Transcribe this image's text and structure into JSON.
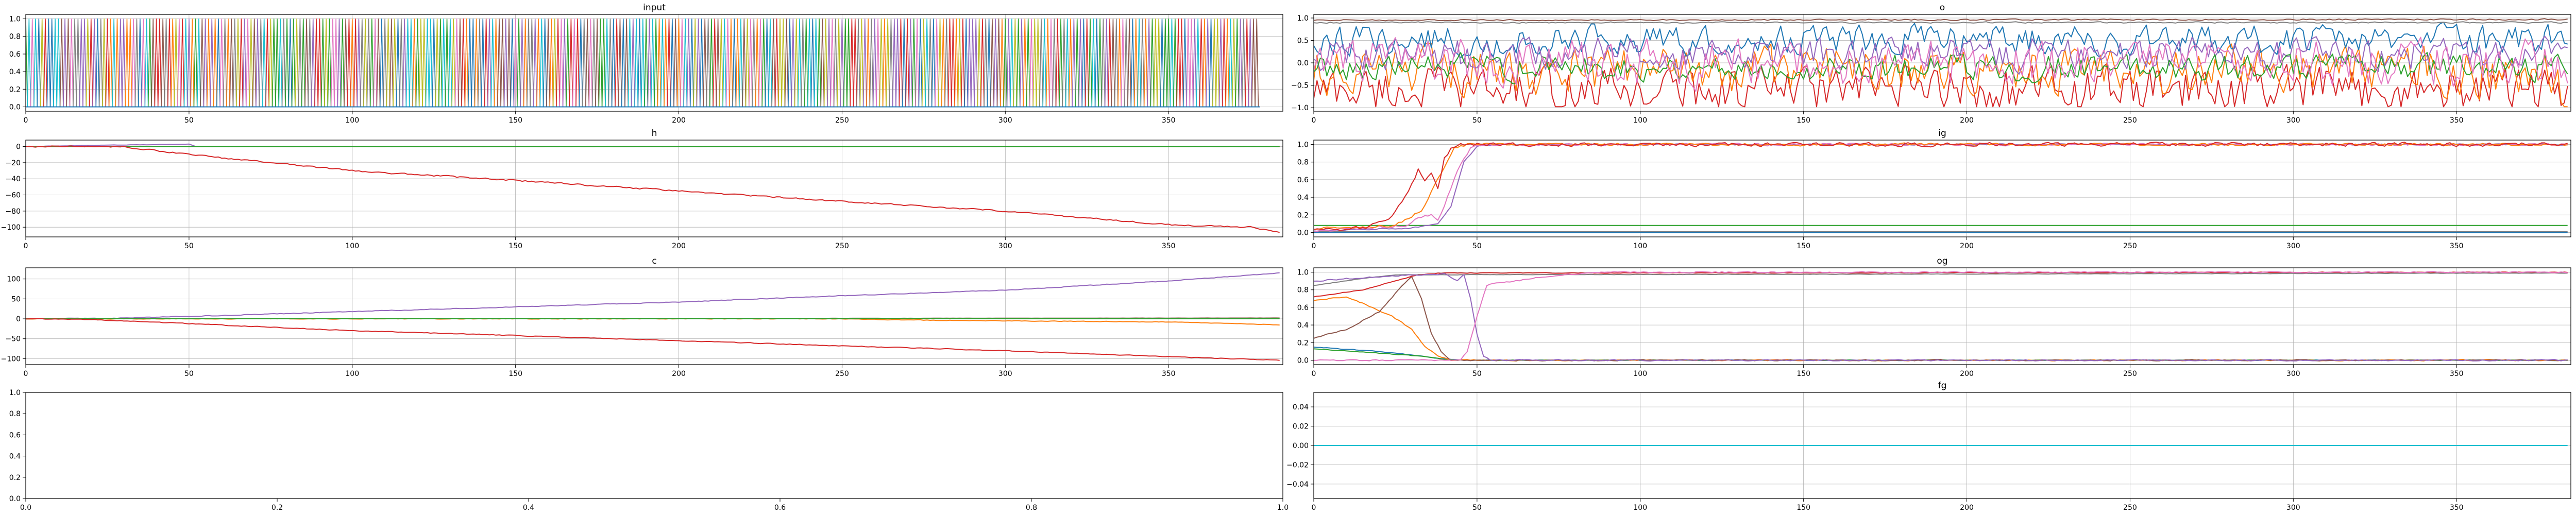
{
  "chart_data": [
    {
      "title": "input",
      "type": "line",
      "grid": true,
      "xlim": [
        0,
        385
      ],
      "ylim": [
        -0.05,
        1.05
      ],
      "xticks": [
        0,
        50,
        100,
        150,
        200,
        250,
        300,
        350
      ],
      "yticks": [
        0.0,
        0.2,
        0.4,
        0.6,
        0.8,
        1.0
      ],
      "pattern": "one-hot",
      "steps": 378,
      "n_series": 10,
      "series_colors": [
        "#1f77b4",
        "#ff7f0e",
        "#2ca02c",
        "#d62728",
        "#9467bd",
        "#8c564b",
        "#e377c2",
        "#7f7f7f",
        "#bcbd22",
        "#17becf"
      ]
    },
    {
      "title": "o",
      "type": "line",
      "grid": true,
      "xlim": [
        0,
        385
      ],
      "ylim": [
        -1.08,
        1.08
      ],
      "xticks": [
        0,
        50,
        100,
        150,
        200,
        250,
        300,
        350
      ],
      "yticks": [
        -1.0,
        -0.5,
        0.0,
        0.5,
        1.0
      ],
      "series": [
        {
          "color": "#d62728",
          "keypoints": [
            [
              0,
              -0.6
            ],
            [
              380,
              -0.6
            ],
            [
              384,
              -0.95
            ]
          ],
          "noise": 0.7,
          "clip": [
            -0.98,
            1.0
          ]
        },
        {
          "color": "#ff7f0e",
          "keypoints": [
            [
              0,
              -0.2
            ],
            [
              380,
              -0.2
            ],
            [
              384,
              -0.9
            ]
          ],
          "noise": 0.7,
          "clip": [
            -0.98,
            1.0
          ]
        },
        {
          "color": "#1f77b4",
          "keypoints": [
            [
              0,
              0.5
            ],
            [
              380,
              0.5
            ],
            [
              384,
              0.3
            ]
          ],
          "noise": 0.45,
          "clip": [
            -0.6,
            0.98
          ]
        },
        {
          "color": "#9467bd",
          "keypoints": [
            [
              0,
              0.2
            ],
            [
              380,
              0.2
            ],
            [
              384,
              -0.1
            ]
          ],
          "noise": 0.5,
          "clip": [
            -0.6,
            0.95
          ]
        },
        {
          "color": "#2ca02c",
          "keypoints": [
            [
              0,
              -0.1
            ],
            [
              380,
              -0.1
            ],
            [
              384,
              -0.15
            ]
          ],
          "noise": 0.4,
          "clip": [
            -0.6,
            0.6
          ]
        },
        {
          "color": "#e377c2",
          "keypoints": [
            [
              0,
              0.0
            ],
            [
              380,
              0.0
            ],
            [
              384,
              -0.7
            ]
          ],
          "noise": 0.7,
          "clip": [
            -0.95,
            0.95
          ]
        },
        {
          "color": "#8c564b",
          "keypoints": [
            [
              0,
              0.95
            ],
            [
              384,
              0.97
            ]
          ],
          "noise": 0.02,
          "clip": [
            -1,
            1
          ]
        },
        {
          "color": "#7f7f7f",
          "keypoints": [
            [
              0,
              0.9
            ],
            [
              384,
              0.9
            ]
          ],
          "noise": 0.02,
          "clip": [
            -1,
            1
          ]
        }
      ]
    },
    {
      "title": "h",
      "type": "line",
      "grid": true,
      "xlim": [
        0,
        385
      ],
      "ylim": [
        -112,
        8
      ],
      "xticks": [
        0,
        50,
        100,
        150,
        200,
        250,
        300,
        350
      ],
      "yticks": [
        0,
        -20,
        -40,
        -60,
        -80,
        -100
      ],
      "series": [
        {
          "color": "#9467bd",
          "keypoints": [
            [
              0,
              0
            ],
            [
              30,
              2
            ],
            [
              50,
              3
            ],
            [
              52,
              0
            ],
            [
              384,
              0
            ]
          ],
          "noise": 0.3
        },
        {
          "color": "#ff7f0e",
          "keypoints": [
            [
              0,
              0
            ],
            [
              384,
              0
            ]
          ],
          "noise": 0.3
        },
        {
          "color": "#8c564b",
          "keypoints": [
            [
              0,
              0
            ],
            [
              384,
              0
            ]
          ],
          "noise": 0
        },
        {
          "color": "#2ca02c",
          "keypoints": [
            [
              0,
              0
            ],
            [
              384,
              0
            ]
          ],
          "noise": 0
        },
        {
          "color": "#d62728",
          "keypoints": [
            [
              0,
              0
            ],
            [
              30,
              0
            ],
            [
              50,
              -10
            ],
            [
              100,
              -30
            ],
            [
              150,
              -42
            ],
            [
              200,
              -55
            ],
            [
              250,
              -68
            ],
            [
              300,
              -80
            ],
            [
              350,
              -97
            ],
            [
              375,
              -100
            ],
            [
              384,
              -106
            ]
          ],
          "noise": 1.2
        }
      ]
    },
    {
      "title": "ig",
      "type": "line",
      "grid": true,
      "xlim": [
        0,
        385
      ],
      "ylim": [
        -0.05,
        1.05
      ],
      "xticks": [
        0,
        50,
        100,
        150,
        200,
        250,
        300,
        350
      ],
      "yticks": [
        0.0,
        0.2,
        0.4,
        0.6,
        0.8,
        1.0
      ],
      "series": [
        {
          "color": "#2ca02c",
          "keypoints": [
            [
              0,
              0.08
            ],
            [
              384,
              0.08
            ]
          ],
          "noise": 0
        },
        {
          "color": "#7f7f7f",
          "keypoints": [
            [
              0,
              0.01
            ],
            [
              384,
              0.01
            ]
          ],
          "noise": 0
        },
        {
          "color": "#1f77b4",
          "keypoints": [
            [
              0,
              0.0
            ],
            [
              384,
              0.0
            ]
          ],
          "noise": 0
        },
        {
          "color": "#9467bd",
          "keypoints": [
            [
              0,
              0.02
            ],
            [
              30,
              0.05
            ],
            [
              38,
              0.1
            ],
            [
              42,
              0.3
            ],
            [
              46,
              0.8
            ],
            [
              50,
              0.98
            ],
            [
              56,
              1.0
            ],
            [
              384,
              1.0
            ]
          ],
          "noise": 0.01
        },
        {
          "color": "#e377c2",
          "keypoints": [
            [
              0,
              0.02
            ],
            [
              28,
              0.08
            ],
            [
              32,
              0.16
            ],
            [
              36,
              0.2
            ],
            [
              38,
              0.15
            ],
            [
              40,
              0.3
            ],
            [
              44,
              0.7
            ],
            [
              48,
              0.95
            ],
            [
              52,
              1.0
            ],
            [
              384,
              1.0
            ]
          ],
          "noise": 0.02
        },
        {
          "color": "#ff7f0e",
          "keypoints": [
            [
              0,
              0.04
            ],
            [
              25,
              0.08
            ],
            [
              33,
              0.25
            ],
            [
              38,
              0.6
            ],
            [
              40,
              0.75
            ],
            [
              43,
              0.95
            ],
            [
              47,
              1.0
            ],
            [
              384,
              1.0
            ]
          ],
          "noise": 0.02
        },
        {
          "color": "#d62728",
          "keypoints": [
            [
              0,
              0.04
            ],
            [
              15,
              0.05
            ],
            [
              22,
              0.12
            ],
            [
              26,
              0.3
            ],
            [
              30,
              0.55
            ],
            [
              32,
              0.72
            ],
            [
              34,
              0.6
            ],
            [
              36,
              0.7
            ],
            [
              38,
              0.5
            ],
            [
              40,
              0.85
            ],
            [
              42,
              0.95
            ],
            [
              44,
              1.0
            ],
            [
              384,
              1.0
            ]
          ],
          "noise": 0.03
        }
      ]
    },
    {
      "title": "c",
      "type": "line",
      "grid": true,
      "xlim": [
        0,
        385
      ],
      "ylim": [
        -115,
        128
      ],
      "xticks": [
        0,
        50,
        100,
        150,
        200,
        250,
        300,
        350
      ],
      "yticks": [
        100,
        50,
        0,
        -50,
        -100
      ],
      "series": [
        {
          "color": "#9467bd",
          "keypoints": [
            [
              0,
              0
            ],
            [
              30,
              2
            ],
            [
              50,
              6
            ],
            [
              100,
              18
            ],
            [
              150,
              30
            ],
            [
              200,
              42
            ],
            [
              250,
              58
            ],
            [
              300,
              72
            ],
            [
              350,
              95
            ],
            [
              384,
              115
            ]
          ],
          "noise": 1.2
        },
        {
          "color": "#ff7f0e",
          "keypoints": [
            [
              0,
              0
            ],
            [
              250,
              0
            ],
            [
              270,
              -3
            ],
            [
              300,
              -5
            ],
            [
              350,
              -8
            ],
            [
              384,
              -15
            ]
          ],
          "noise": 1
        },
        {
          "color": "#8c564b",
          "keypoints": [
            [
              0,
              0
            ],
            [
              384,
              2
            ]
          ],
          "noise": 0.2
        },
        {
          "color": "#2ca02c",
          "keypoints": [
            [
              0,
              0
            ],
            [
              384,
              0
            ]
          ],
          "noise": 0
        },
        {
          "color": "#d62728",
          "keypoints": [
            [
              0,
              0
            ],
            [
              20,
              -2
            ],
            [
              50,
              -12
            ],
            [
              100,
              -30
            ],
            [
              150,
              -42
            ],
            [
              200,
              -55
            ],
            [
              250,
              -68
            ],
            [
              300,
              -80
            ],
            [
              350,
              -95
            ],
            [
              384,
              -104
            ]
          ],
          "noise": 1.2
        }
      ]
    },
    {
      "title": "og",
      "type": "line",
      "grid": true,
      "xlim": [
        0,
        385
      ],
      "ylim": [
        -0.05,
        1.05
      ],
      "xticks": [
        0,
        50,
        100,
        150,
        200,
        250,
        300,
        350
      ],
      "yticks": [
        0.0,
        0.2,
        0.4,
        0.6,
        0.8,
        1.0
      ],
      "series": [
        {
          "color": "#1f77b4",
          "keypoints": [
            [
              0,
              0.15
            ],
            [
              20,
              0.1
            ],
            [
              30,
              0.06
            ],
            [
              38,
              0.02
            ],
            [
              45,
              0.0
            ],
            [
              384,
              0.0
            ]
          ],
          "noise": 0.005
        },
        {
          "color": "#2ca02c",
          "keypoints": [
            [
              0,
              0.13
            ],
            [
              20,
              0.08
            ],
            [
              32,
              0.05
            ],
            [
              40,
              0.01
            ],
            [
              46,
              0.0
            ],
            [
              384,
              0.0
            ]
          ],
          "noise": 0.005
        },
        {
          "color": "#ff7f0e",
          "keypoints": [
            [
              0,
              0.68
            ],
            [
              10,
              0.72
            ],
            [
              18,
              0.6
            ],
            [
              24,
              0.5
            ],
            [
              30,
              0.35
            ],
            [
              34,
              0.15
            ],
            [
              38,
              0.05
            ],
            [
              42,
              0.0
            ],
            [
              384,
              0.0
            ]
          ],
          "noise": 0.01
        },
        {
          "color": "#8c564b",
          "keypoints": [
            [
              0,
              0.25
            ],
            [
              10,
              0.35
            ],
            [
              20,
              0.55
            ],
            [
              26,
              0.8
            ],
            [
              30,
              0.95
            ],
            [
              33,
              0.7
            ],
            [
              36,
              0.3
            ],
            [
              39,
              0.1
            ],
            [
              42,
              0.0
            ],
            [
              384,
              0.0
            ]
          ],
          "noise": 0.01
        },
        {
          "color": "#d62728",
          "keypoints": [
            [
              0,
              0.72
            ],
            [
              15,
              0.8
            ],
            [
              25,
              0.9
            ],
            [
              32,
              0.97
            ],
            [
              38,
              0.99
            ],
            [
              384,
              1.0
            ]
          ],
          "noise": 0.005
        },
        {
          "color": "#7f7f7f",
          "keypoints": [
            [
              0,
              0.85
            ],
            [
              15,
              0.93
            ],
            [
              25,
              0.97
            ],
            [
              384,
              0.99
            ]
          ],
          "noise": 0.003
        },
        {
          "color": "#9467bd",
          "keypoints": [
            [
              0,
              0.9
            ],
            [
              20,
              0.95
            ],
            [
              30,
              0.97
            ],
            [
              40,
              0.98
            ],
            [
              44,
              0.9
            ],
            [
              46,
              0.97
            ],
            [
              48,
              0.7
            ],
            [
              50,
              0.3
            ],
            [
              52,
              0.05
            ],
            [
              54,
              0.0
            ],
            [
              384,
              0.0
            ]
          ],
          "noise": 0.01
        },
        {
          "color": "#e377c2",
          "keypoints": [
            [
              0,
              0.0
            ],
            [
              45,
              0.0
            ],
            [
              47,
              0.1
            ],
            [
              50,
              0.5
            ],
            [
              53,
              0.85
            ],
            [
              56,
              0.88
            ],
            [
              62,
              0.9
            ],
            [
              70,
              0.95
            ],
            [
              80,
              0.98
            ],
            [
              90,
              1.0
            ],
            [
              384,
              1.0
            ]
          ],
          "noise": 0.01
        }
      ]
    },
    {
      "title": "",
      "type": "line",
      "grid": false,
      "xlim": [
        0,
        1
      ],
      "ylim": [
        0,
        1
      ],
      "xticks": [
        0.0,
        0.2,
        0.4,
        0.6,
        0.8,
        1.0
      ],
      "yticks": [
        0.0,
        0.2,
        0.4,
        0.6,
        0.8,
        1.0
      ],
      "series": []
    },
    {
      "title": "fg",
      "type": "line",
      "grid": true,
      "xlim": [
        0,
        385
      ],
      "ylim": [
        -0.055,
        0.055
      ],
      "xticks": [
        0,
        50,
        100,
        150,
        200,
        250,
        300,
        350
      ],
      "yticks": [
        0.04,
        0.02,
        0.0,
        -0.02,
        -0.04
      ],
      "series": [
        {
          "color": "#17becf",
          "keypoints": [
            [
              0,
              0
            ],
            [
              384,
              0
            ]
          ],
          "noise": 0
        }
      ]
    }
  ]
}
